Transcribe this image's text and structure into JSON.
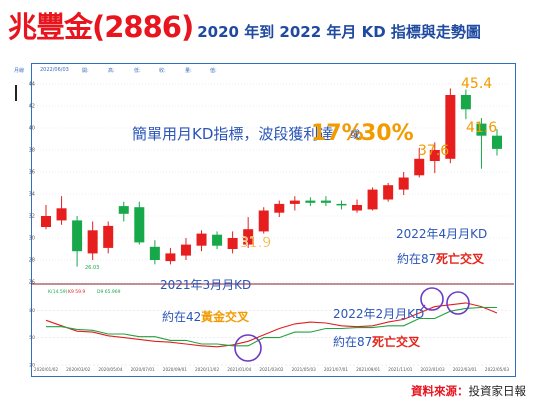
{
  "header": {
    "title_main": "兆豐金(2886)",
    "title_sub": "2020 年到 2022 年月 KD 指標與走勢圖"
  },
  "topbar": {
    "period": "月線",
    "date": "2022/06/03",
    "open": "開:",
    "high": "高:",
    "low": "低:",
    "close": "收:",
    "volume": "量:",
    "amount": "值:"
  },
  "source": {
    "label": "資料來源：",
    "value": "投資家日報"
  },
  "colors": {
    "up": "#e61e1e",
    "down": "#17a84a",
    "k_line": "#e21e1e",
    "d_line": "#22a33f",
    "purple": "#6a3cc4",
    "annot": "#2b55b8",
    "highlight_red": "#e5241b",
    "highlight_yellow": "#f29b00",
    "frame": "#2c6fc4"
  },
  "chart_data": [
    {
      "type": "candlestick",
      "title": "兆豐金(2886)",
      "yticks": [
        "26",
        "28",
        "30",
        "32",
        "34",
        "36",
        "38",
        "40",
        "42",
        "44"
      ],
      "ylim": [
        26,
        45
      ],
      "xlabels": [
        "2020/01/02",
        "2020/03/02",
        "2020/05/04",
        "2020/07/01",
        "2020/09/01",
        "2020/11/02",
        "2021/01/04",
        "2021/03/02",
        "2021/05/03",
        "2021/07/01",
        "2021/09/01",
        "2021/11/01",
        "2022/01/03",
        "2022/03/01",
        "2022/05/03"
      ],
      "candles": [
        {
          "o": 31.0,
          "c": 32.0,
          "h": 33.0,
          "l": 30.8
        },
        {
          "o": 31.6,
          "c": 32.7,
          "h": 33.8,
          "l": 31.2
        },
        {
          "o": 31.6,
          "c": 28.8,
          "h": 32.0,
          "l": 27.4
        },
        {
          "o": 28.6,
          "c": 30.7,
          "h": 31.5,
          "l": 28.0
        },
        {
          "o": 29.1,
          "c": 31.1,
          "h": 31.5,
          "l": 28.6
        },
        {
          "o": 32.9,
          "c": 32.2,
          "h": 33.3,
          "l": 31.5
        },
        {
          "o": 32.8,
          "c": 29.6,
          "h": 33.3,
          "l": 29.4
        },
        {
          "o": 29.2,
          "c": 28.0,
          "h": 29.8,
          "l": 27.6
        },
        {
          "o": 27.9,
          "c": 28.6,
          "h": 29.1,
          "l": 27.6
        },
        {
          "o": 28.4,
          "c": 29.4,
          "h": 30.0,
          "l": 28.0
        },
        {
          "o": 29.3,
          "c": 30.4,
          "h": 30.7,
          "l": 28.8
        },
        {
          "o": 30.3,
          "c": 29.3,
          "h": 30.6,
          "l": 29.0
        },
        {
          "o": 29.0,
          "c": 30.0,
          "h": 30.6,
          "l": 28.6
        },
        {
          "o": 29.4,
          "c": 30.8,
          "h": 31.9,
          "l": 29.1
        },
        {
          "o": 30.6,
          "c": 32.5,
          "h": 32.8,
          "l": 30.4
        },
        {
          "o": 32.3,
          "c": 33.1,
          "h": 33.4,
          "l": 31.9
        },
        {
          "o": 33.1,
          "c": 33.4,
          "h": 33.8,
          "l": 32.5
        },
        {
          "o": 33.4,
          "c": 33.2,
          "h": 33.7,
          "l": 32.9
        },
        {
          "o": 33.4,
          "c": 33.2,
          "h": 33.8,
          "l": 32.9
        },
        {
          "o": 33.1,
          "c": 33.0,
          "h": 33.4,
          "l": 32.6
        },
        {
          "o": 32.5,
          "c": 33.0,
          "h": 33.5,
          "l": 32.3
        },
        {
          "o": 32.6,
          "c": 34.4,
          "h": 34.6,
          "l": 32.5
        },
        {
          "o": 33.5,
          "c": 34.8,
          "h": 35.0,
          "l": 33.3
        },
        {
          "o": 34.4,
          "c": 35.5,
          "h": 36.0,
          "l": 33.9
        },
        {
          "o": 35.7,
          "c": 37.2,
          "h": 38.2,
          "l": 35.5
        },
        {
          "o": 37.0,
          "c": 38.0,
          "h": 38.7,
          "l": 35.9
        },
        {
          "o": 37.2,
          "c": 43.0,
          "h": 43.6,
          "l": 36.8
        },
        {
          "o": 43.0,
          "c": 41.7,
          "h": 43.5,
          "l": 40.8
        },
        {
          "o": 40.4,
          "c": 39.3,
          "h": 40.9,
          "l": 36.3
        },
        {
          "o": 39.3,
          "c": 38.1,
          "h": 39.9,
          "l": 37.5
        }
      ],
      "annotations": [
        "31.9",
        "37.6",
        "45.4",
        "41.6",
        "26.03"
      ]
    },
    {
      "type": "line",
      "title": "KD",
      "series": [
        {
          "name": "K",
          "values": [
            69,
            63,
            57,
            56,
            52,
            50,
            48,
            46,
            45,
            43,
            41,
            40,
            42,
            46,
            53,
            60,
            65,
            67,
            66,
            63,
            62,
            63,
            67,
            70,
            77,
            84,
            86,
            88,
            84,
            77
          ]
        },
        {
          "name": "D",
          "values": [
            62,
            62,
            59,
            58,
            54,
            54,
            51,
            51,
            47,
            47,
            43,
            43,
            41,
            41,
            50,
            50,
            56,
            56,
            60,
            60,
            61,
            61,
            63,
            63,
            71,
            71,
            79,
            82,
            83,
            83
          ]
        }
      ],
      "ylim": [
        20,
        100
      ],
      "ref_levels": [
        80,
        50,
        20
      ],
      "legend_labels": [
        "K(14.59)",
        "K9 59.9",
        "D9 65.969"
      ]
    }
  ],
  "annotations": {
    "main_text_1": "簡單用月KD指標，波段獲利達",
    "main_pct_1": "17%",
    "main_or": "或",
    "main_pct_2": "30%",
    "box_2022_apr_1": "2022年4月月KD",
    "box_2022_apr_2_pre": "約在87",
    "box_2022_apr_2_hl": "死亡交叉",
    "box_2021_mar_1": "2021年3月月KD",
    "box_2021_mar_2_pre": "約在42",
    "box_2021_mar_2_hl": "黃金交叉",
    "box_2022_feb_1": "2022年2月月KD",
    "box_2022_feb_2_pre": "約在87",
    "box_2022_feb_2_hl": "死亡交叉"
  }
}
